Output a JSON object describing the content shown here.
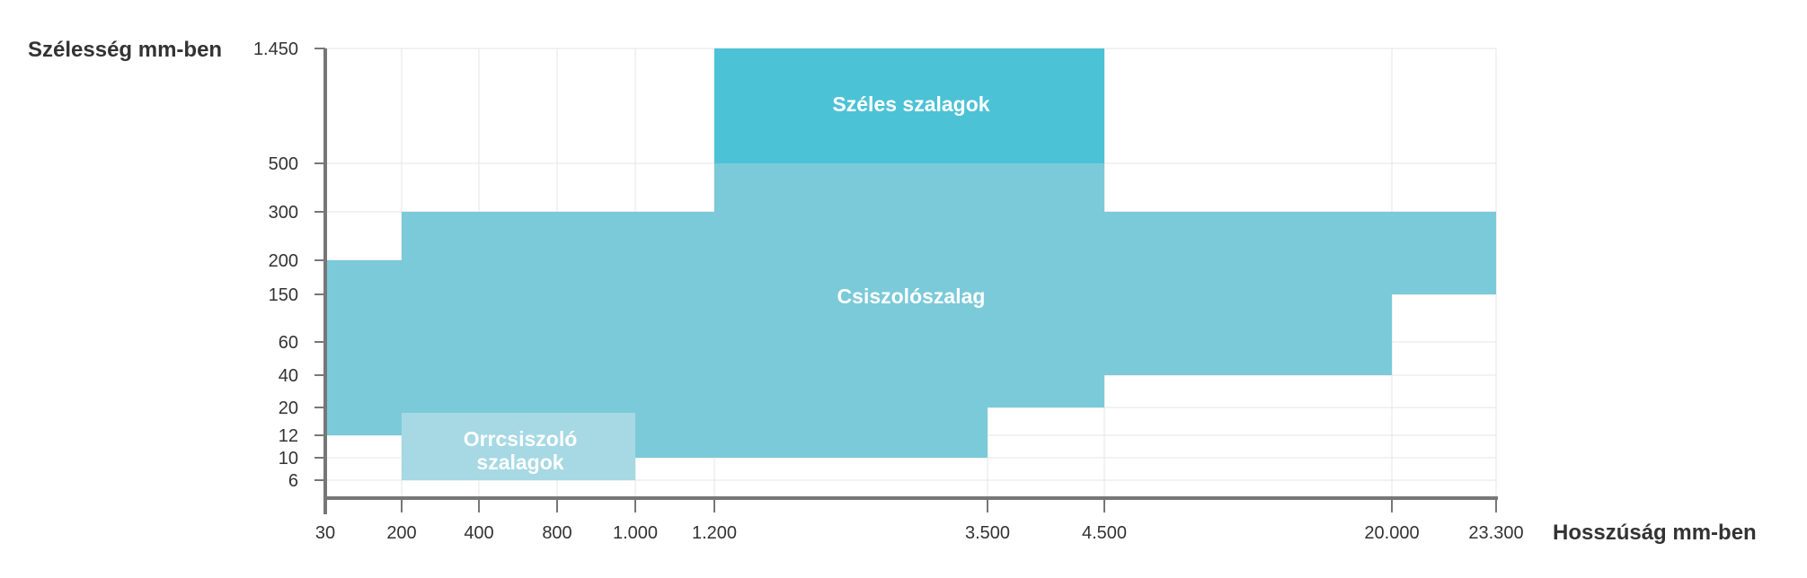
{
  "chart_data": {
    "type": "area",
    "xlabel": "Hosszúság mm-ben",
    "ylabel": "Szélesség mm-ben",
    "x_ticks": [
      "30",
      "200",
      "400",
      "800",
      "1.000",
      "1.200",
      "3.500",
      "4.500",
      "20.000",
      "23.300"
    ],
    "y_ticks": [
      "1.450",
      "500",
      "300",
      "200",
      "150",
      "60",
      "40",
      "20",
      "12",
      "10",
      "6"
    ],
    "scale": "categorical-ticks",
    "grid": true,
    "regions": [
      {
        "name": "Csiszolószalag",
        "label": "Csiszolószalag",
        "color": "#7bcad9",
        "outline": [
          [
            "30",
            "12"
          ],
          [
            "30",
            "200"
          ],
          [
            "200",
            "200"
          ],
          [
            "200",
            "300"
          ],
          [
            "1.200",
            "300"
          ],
          [
            "1.200",
            "500"
          ],
          [
            "4.500",
            "500"
          ],
          [
            "4.500",
            "300"
          ],
          [
            "23.300",
            "300"
          ],
          [
            "23.300",
            "150"
          ],
          [
            "20.000",
            "150"
          ],
          [
            "20.000",
            "40"
          ],
          [
            "4.500",
            "40"
          ],
          [
            "4.500",
            "20"
          ],
          [
            "3.500",
            "20"
          ],
          [
            "3.500",
            "10"
          ],
          [
            "1.000",
            "10"
          ],
          [
            "1.000",
            "6"
          ],
          [
            "200",
            "6"
          ],
          [
            "200",
            "12"
          ]
        ]
      },
      {
        "name": "Széles szalagok",
        "label": "Széles szalagok",
        "color": "#4cc2d6",
        "outline": [
          [
            "1.200",
            "500"
          ],
          [
            "1.200",
            "1.450"
          ],
          [
            "4.500",
            "1.450"
          ],
          [
            "4.500",
            "500"
          ]
        ]
      },
      {
        "name": "Orrcsiszoló szalagok",
        "label": [
          "Orrcsiszoló",
          "szalagok"
        ],
        "color": "#a6d9e4",
        "outline": [
          [
            "200",
            "6"
          ],
          [
            "200",
            "19"
          ],
          [
            "1.000",
            "19"
          ],
          [
            "1.000",
            "6"
          ]
        ]
      }
    ]
  }
}
